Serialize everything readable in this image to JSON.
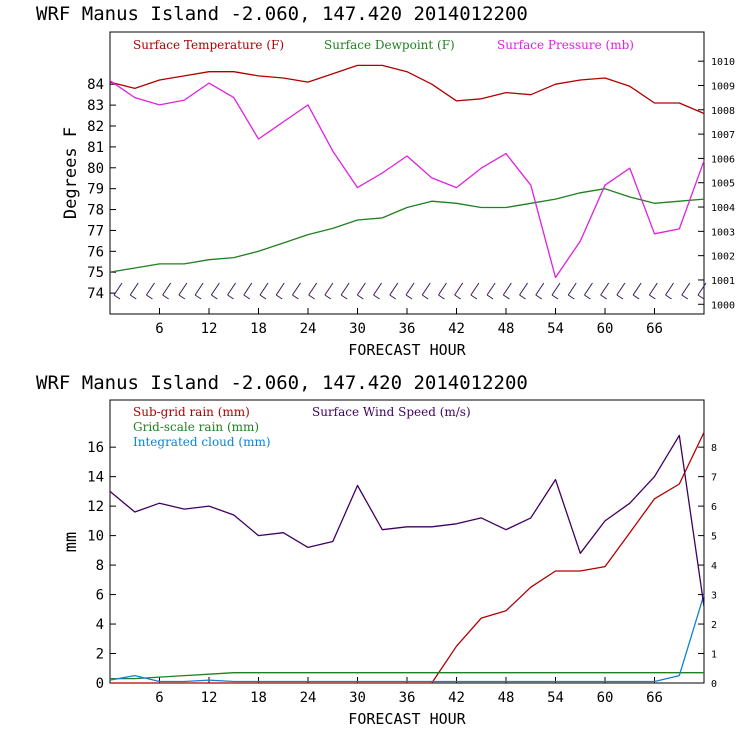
{
  "charts": [
    {
      "title": "WRF  Manus Island  -2.060, 147.420  2014012200",
      "xlabel": "FORECAST HOUR",
      "ylabel": "Degrees F",
      "left_ticks": [
        "84",
        "83",
        "82",
        "81",
        "80",
        "79",
        "78",
        "77",
        "76",
        "75",
        "74"
      ],
      "right_ticks": [
        "1010",
        "1009",
        "1008",
        "1007",
        "1006",
        "1005",
        "1004",
        "1003",
        "1002",
        "1001",
        "1000"
      ],
      "legend": [
        {
          "label": "Surface Temperature (F)",
          "color": "#b00000"
        },
        {
          "label": "Surface Dewpoint (F)",
          "color": "#208020"
        },
        {
          "label": "Surface Pressure (mb)",
          "color": "#e020e0"
        }
      ]
    },
    {
      "title": "WRF  Manus Island  -2.060, 147.420  2014012200",
      "xlabel": "FORECAST HOUR",
      "ylabel": "mm",
      "left_ticks": [
        "16",
        "14",
        "12",
        "10",
        "8",
        "6",
        "4",
        "2",
        "0"
      ],
      "right_ticks": [
        "8",
        "7",
        "6",
        "5",
        "4",
        "3",
        "2",
        "1",
        "0"
      ],
      "legend": [
        {
          "label": "Sub-grid rain (mm)",
          "color": "#b00000"
        },
        {
          "label": "Surface Wind Speed (m/s)",
          "color": "#400060"
        },
        {
          "label": "Grid-scale rain (mm)",
          "color": "#208020"
        },
        {
          "label": "Integrated cloud (mm)",
          "color": "#1080d0"
        }
      ]
    }
  ],
  "x_ticks": [
    "6",
    "12",
    "18",
    "24",
    "30",
    "36",
    "42",
    "48",
    "54",
    "60",
    "66"
  ],
  "chart_data": [
    {
      "type": "line",
      "x": [
        0,
        3,
        6,
        9,
        12,
        15,
        18,
        21,
        24,
        27,
        30,
        33,
        36,
        39,
        42,
        45,
        48,
        51,
        54,
        57,
        60,
        63,
        66,
        69,
        72
      ],
      "xlim": [
        0,
        72
      ],
      "ylabel": "Degrees F",
      "ylim": [
        73,
        86.5
      ],
      "y2lim": [
        999.6,
        1011.2
      ],
      "series": [
        {
          "name": "Surface Temperature (F)",
          "axis": "left",
          "color": "#b00000",
          "values": [
            84.1,
            83.8,
            84.2,
            84.4,
            84.6,
            84.6,
            84.4,
            84.3,
            84.1,
            84.5,
            84.9,
            84.9,
            84.6,
            84.0,
            83.2,
            83.3,
            83.6,
            83.5,
            84.0,
            84.2,
            84.3,
            83.9,
            83.1,
            83.1,
            82.6
          ]
        },
        {
          "name": "Surface Dewpoint (F)",
          "axis": "left",
          "color": "#208020",
          "values": [
            75.0,
            75.2,
            75.4,
            75.4,
            75.6,
            75.7,
            76.0,
            76.4,
            76.8,
            77.1,
            77.5,
            77.6,
            78.1,
            78.4,
            78.3,
            78.1,
            78.1,
            78.3,
            78.5,
            78.8,
            79.0,
            78.6,
            78.3,
            78.4,
            78.5
          ]
        },
        {
          "name": "Surface Pressure (mb)",
          "axis": "right",
          "color": "#e020e0",
          "values": [
            1009.2,
            1008.5,
            1008.2,
            1008.4,
            1009.1,
            1008.5,
            1006.8,
            1007.5,
            1008.2,
            1006.3,
            1004.8,
            1005.4,
            1006.1,
            1005.2,
            1004.8,
            1005.6,
            1006.2,
            1004.9,
            1001.1,
            1002.6,
            1004.9,
            1005.6,
            1002.9,
            1003.1,
            1005.9
          ]
        }
      ]
    },
    {
      "type": "line",
      "x": [
        0,
        3,
        6,
        9,
        12,
        15,
        18,
        21,
        24,
        27,
        30,
        33,
        36,
        39,
        42,
        45,
        48,
        51,
        54,
        57,
        60,
        63,
        66,
        69,
        72
      ],
      "xlim": [
        0,
        72
      ],
      "ylabel": "mm",
      "ylim": [
        0,
        19.2
      ],
      "y2lim": [
        0,
        9.6
      ],
      "series": [
        {
          "name": "Sub-grid rain (mm)",
          "axis": "left",
          "color": "#b00000",
          "values": [
            0,
            0,
            0,
            0,
            0,
            0,
            0,
            0,
            0,
            0,
            0,
            0,
            0,
            0,
            2.5,
            4.4,
            4.9,
            6.5,
            7.6,
            7.6,
            7.9,
            10.2,
            12.5,
            13.5,
            17.0
          ]
        },
        {
          "name": "Grid-scale rain (mm)",
          "axis": "left",
          "color": "#208020",
          "values": [
            0.3,
            0.3,
            0.4,
            0.5,
            0.6,
            0.7,
            0.7,
            0.7,
            0.7,
            0.7,
            0.7,
            0.7,
            0.7,
            0.7,
            0.7,
            0.7,
            0.7,
            0.7,
            0.7,
            0.7,
            0.7,
            0.7,
            0.7,
            0.7,
            0.7
          ]
        },
        {
          "name": "Integrated cloud (mm)",
          "axis": "left",
          "color": "#1080d0",
          "values": [
            0.2,
            0.5,
            0.1,
            0.1,
            0.2,
            0.1,
            0.1,
            0.1,
            0.1,
            0.1,
            0.1,
            0.1,
            0.1,
            0.1,
            0.1,
            0.1,
            0.1,
            0.1,
            0.1,
            0.1,
            0.1,
            0.1,
            0.1,
            0.5,
            6.0
          ]
        },
        {
          "name": "Surface Wind Speed (m/s)",
          "axis": "right",
          "color": "#400060",
          "values": [
            6.5,
            5.8,
            6.1,
            5.9,
            6.0,
            5.7,
            5.0,
            5.1,
            4.6,
            4.8,
            6.7,
            5.2,
            5.3,
            5.3,
            5.4,
            5.6,
            5.2,
            5.6,
            6.9,
            4.4,
            5.5,
            6.1,
            7.0,
            8.4,
            2.6
          ]
        }
      ]
    }
  ]
}
